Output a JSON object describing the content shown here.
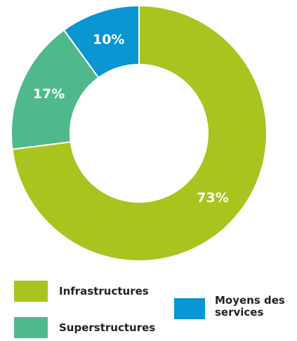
{
  "chart_data": {
    "type": "donut",
    "categories": [
      "Infrastructures",
      "Superstructures",
      "Moyens des services"
    ],
    "values": [
      73,
      17,
      10
    ],
    "value_labels": [
      "73%",
      "17%",
      "10%"
    ],
    "colors": [
      "#a9c41f",
      "#4fb98c",
      "#0a95d3"
    ]
  }
}
